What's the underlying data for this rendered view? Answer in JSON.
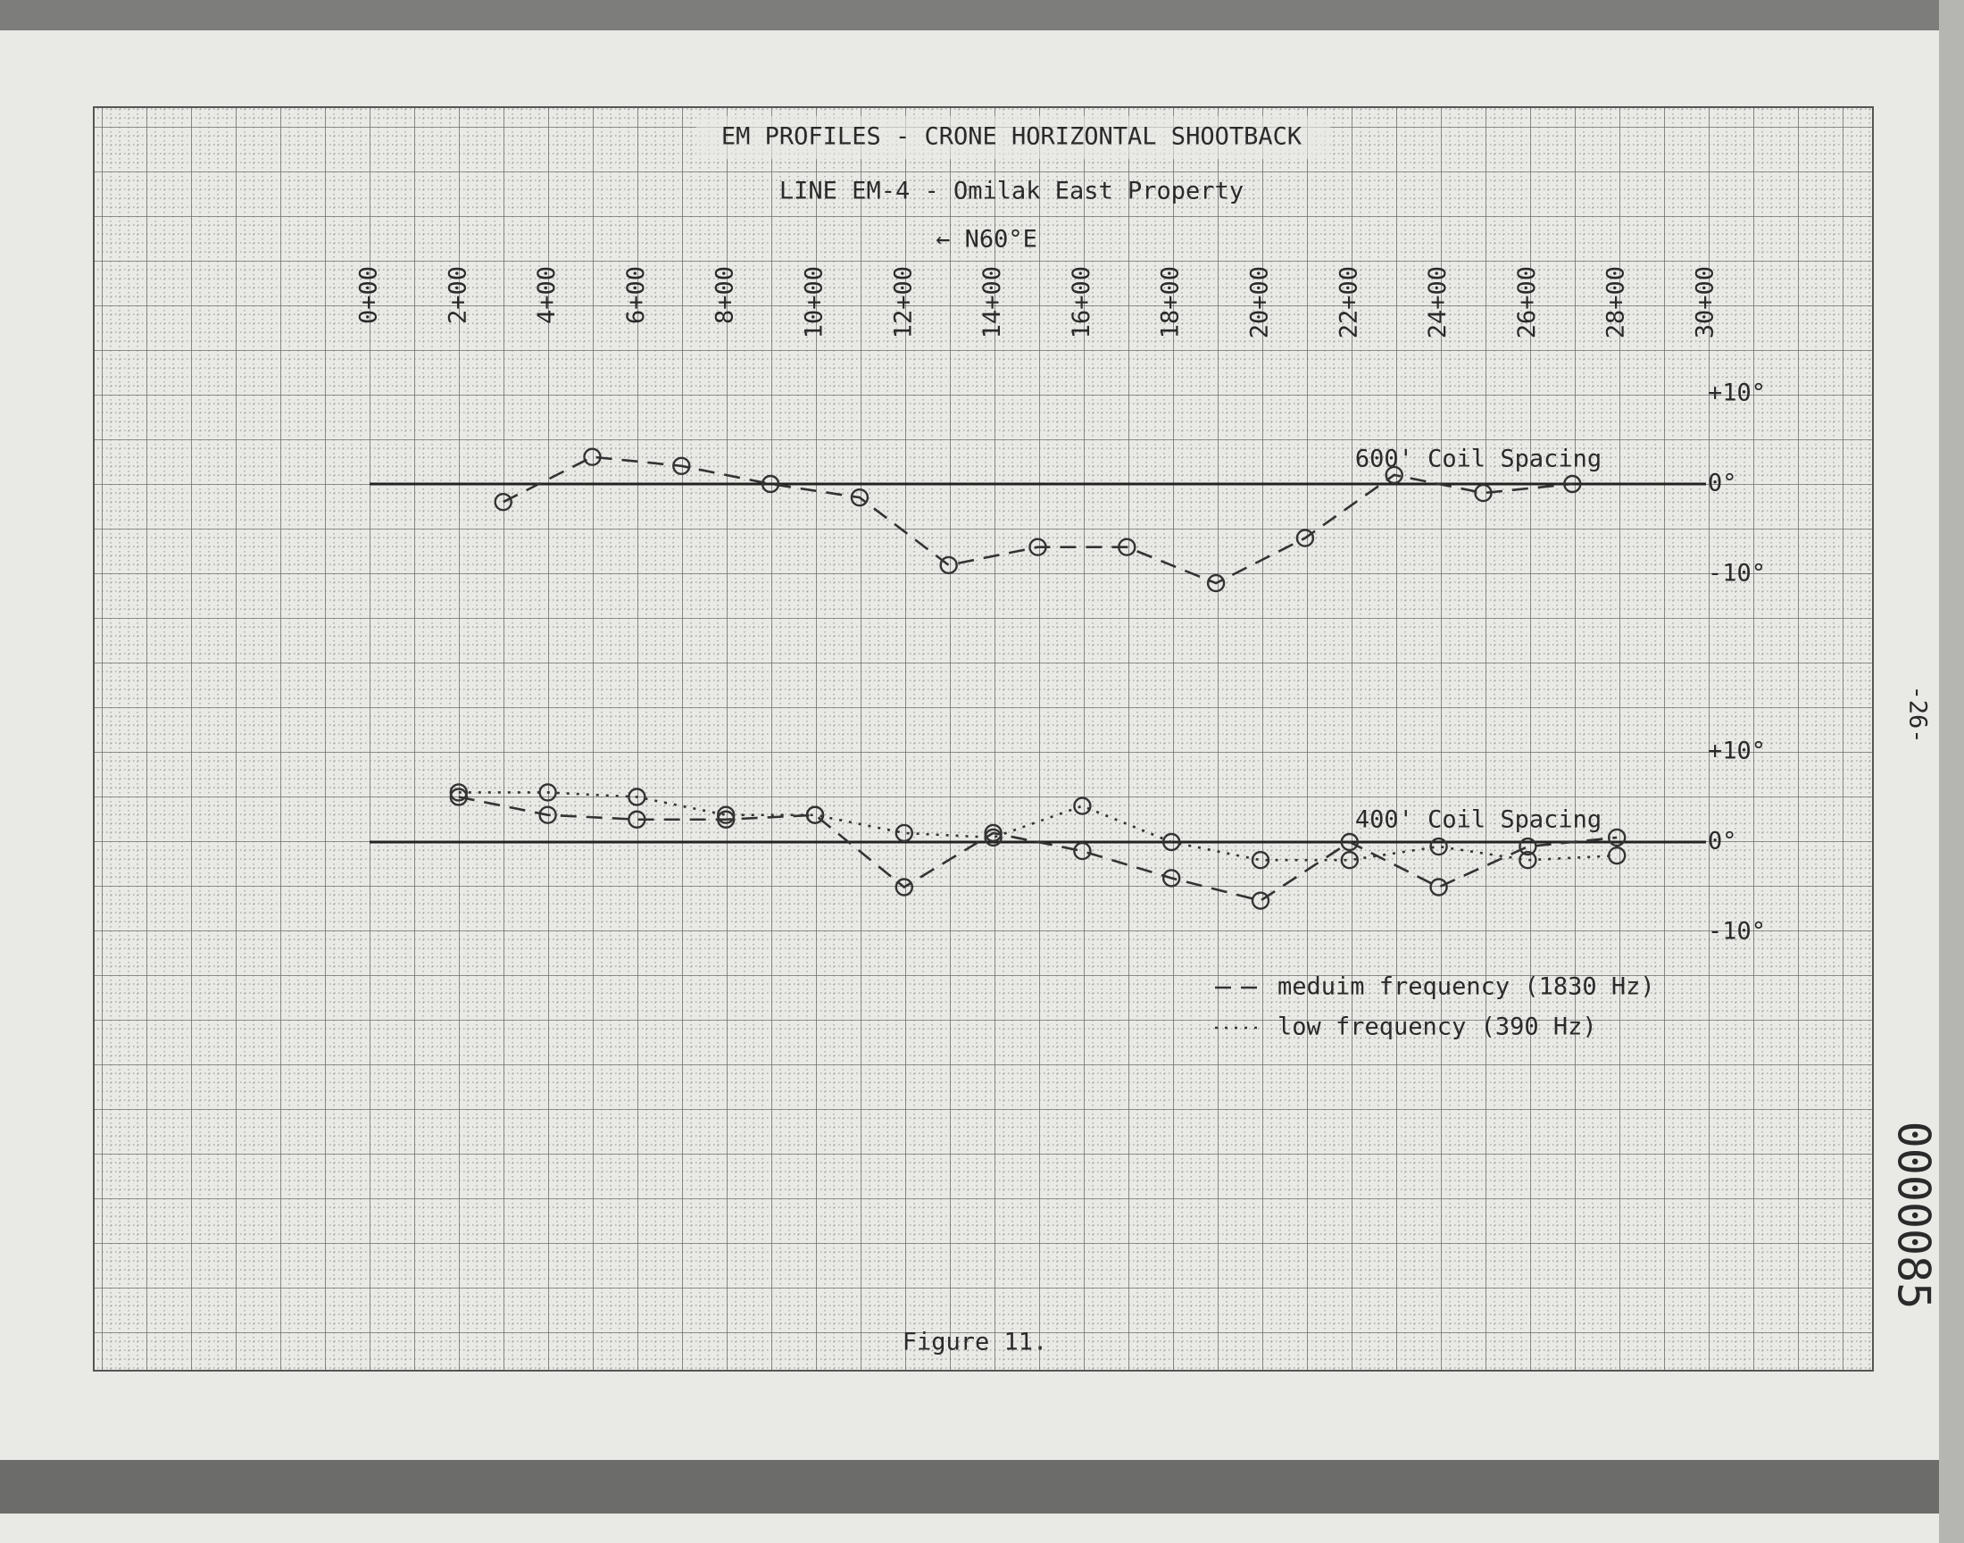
{
  "chart_data": [
    {
      "type": "line",
      "title": "EM PROFILES - CRONE HORIZONTAL SHOOTBACK",
      "subtitle": "LINE EM-4 - Omilak East Property",
      "direction": "← N60°E",
      "annotation": "600' Coil Spacing",
      "x": [
        3,
        5,
        7,
        9,
        11,
        13,
        15,
        17,
        19,
        21,
        23,
        25,
        27
      ],
      "series": [
        {
          "color": "#333333",
          "dash": "dashed",
          "values": [
            -2,
            3,
            2,
            0,
            -1.5,
            -9,
            -7,
            -7,
            -11,
            -6,
            1,
            -1,
            0
          ]
        }
      ],
      "xlim": [
        0,
        30
      ],
      "xticks": [
        {
          "value": 0,
          "label": "0+00"
        },
        {
          "value": 2,
          "label": "2+00"
        },
        {
          "value": 4,
          "label": "4+00"
        },
        {
          "value": 6,
          "label": "6+00"
        },
        {
          "value": 8,
          "label": "8+00"
        },
        {
          "value": 10,
          "label": "10+00"
        },
        {
          "value": 12,
          "label": "12+00"
        },
        {
          "value": 14,
          "label": "14+00"
        },
        {
          "value": 16,
          "label": "16+00"
        },
        {
          "value": 18,
          "label": "18+00"
        },
        {
          "value": 20,
          "label": "20+00"
        },
        {
          "value": 22,
          "label": "22+00"
        },
        {
          "value": 24,
          "label": "24+00"
        },
        {
          "value": 26,
          "label": "26+00"
        },
        {
          "value": 28,
          "label": "28+00"
        },
        {
          "value": 30,
          "label": "30+00"
        }
      ],
      "ylim": [
        -10,
        10
      ],
      "yticks": [
        {
          "value": 10,
          "label": "+10°"
        },
        {
          "value": 0,
          "label": "0°"
        },
        {
          "value": -10,
          "label": "-10°"
        }
      ]
    },
    {
      "type": "line",
      "annotation": "400' Coil Spacing",
      "x": [
        2,
        4,
        6,
        8,
        10,
        12,
        14,
        16,
        18,
        20,
        22,
        24,
        26,
        28
      ],
      "series": [
        {
          "name": "meduim frequency (1830 Hz)",
          "color": "#333333",
          "dash": "dashed",
          "values": [
            5,
            3,
            2.5,
            2.5,
            3,
            -5,
            1,
            -1,
            -4,
            -6.5,
            0,
            -5,
            -0.5,
            0.5
          ]
        },
        {
          "name": "low frequency (390 Hz)",
          "color": "#333333",
          "dash": "dotted",
          "values": [
            5.5,
            5.5,
            5,
            3,
            3,
            1,
            0.5,
            4,
            0,
            -2,
            -2,
            -0.5,
            -2,
            -1.5
          ]
        }
      ],
      "xlim": [
        0,
        30
      ],
      "ylim": [
        -10,
        10
      ],
      "yticks": [
        {
          "value": 10,
          "label": "+10°"
        },
        {
          "value": 0,
          "label": "0°"
        },
        {
          "value": -10,
          "label": "-10°"
        }
      ]
    }
  ],
  "caption": "Figure 11.",
  "page_number": "-26-",
  "document_number": "0000085"
}
